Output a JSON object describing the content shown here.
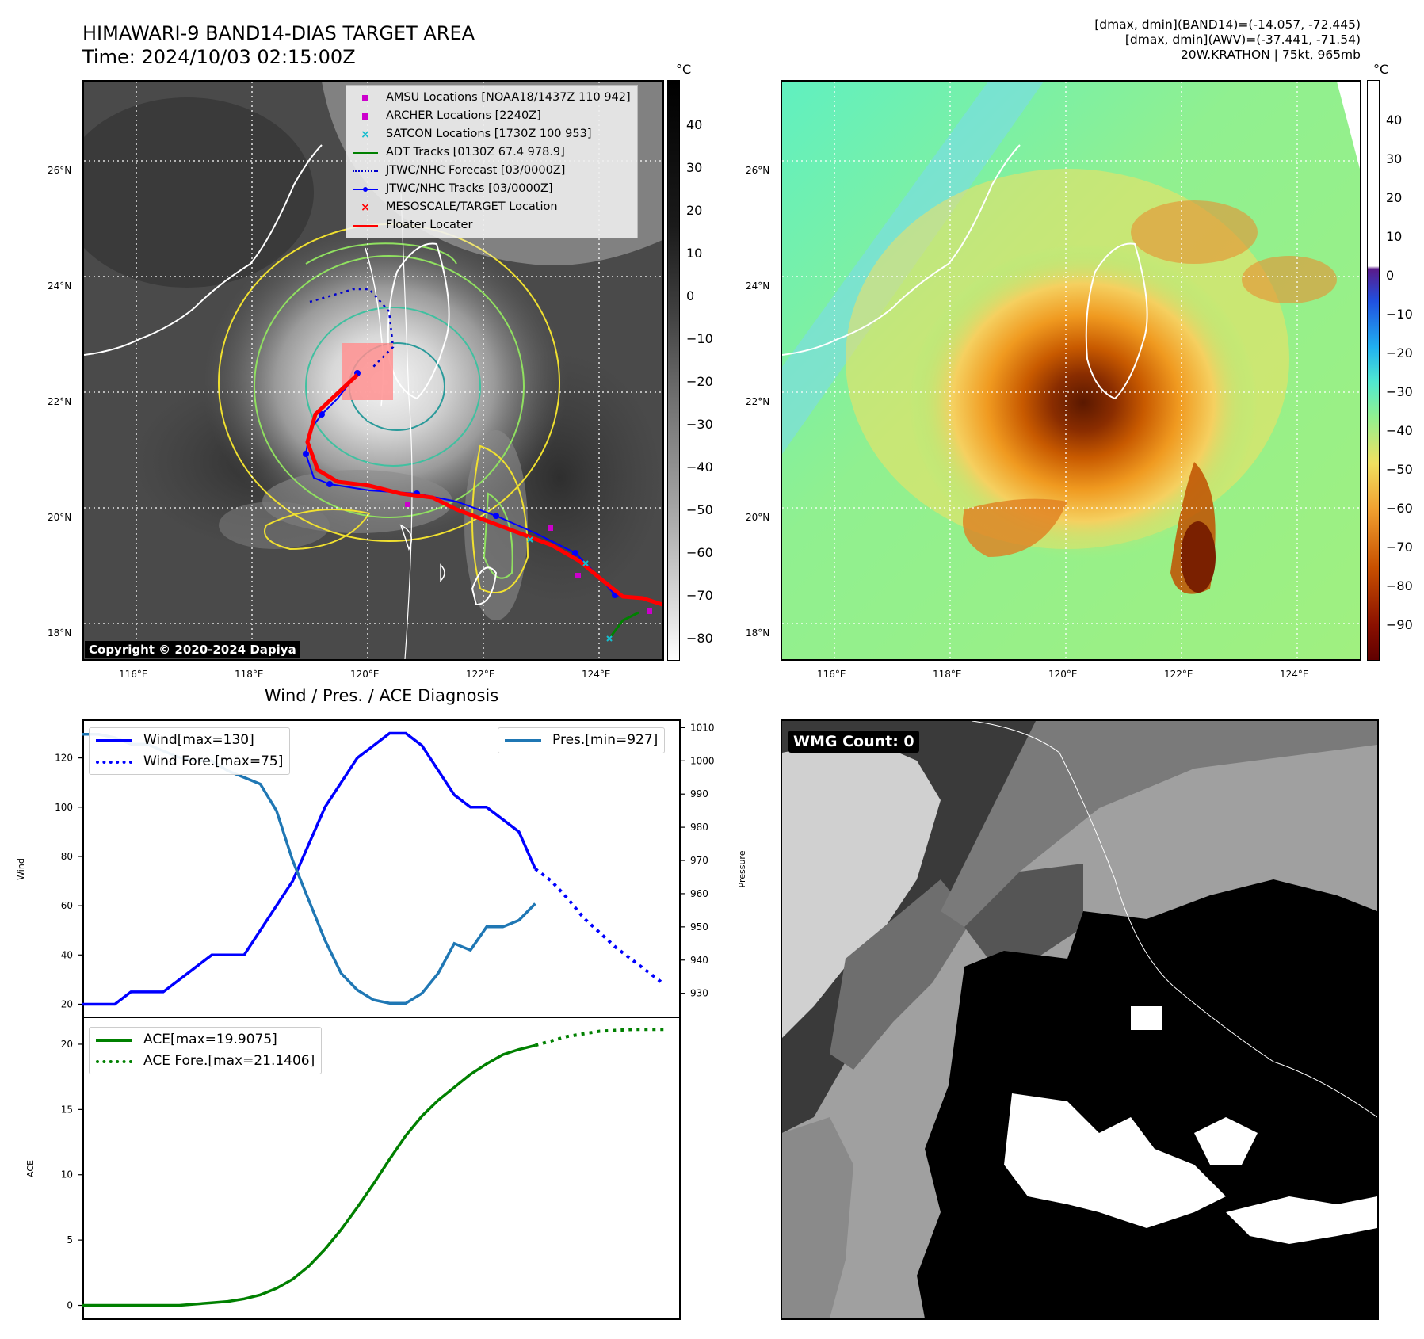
{
  "header": {
    "title_line1": "HIMAWARI-9 BAND14-DIAS TARGET AREA",
    "title_line2": "Time: 2024/10/03 02:15:00Z",
    "stats_line1": "[dmax, dmin](BAND14)=(-14.057, -72.445)",
    "stats_line2": "[dmax, dmin](AWV)=(-37.441, -71.54)",
    "stats_line3": "20W.KRATHON | 75kt, 965mb"
  },
  "map_axes": {
    "lat_ticks": [
      "26°N",
      "24°N",
      "22°N",
      "20°N",
      "18°N"
    ],
    "lon_ticks": [
      "116°E",
      "118°E",
      "120°E",
      "122°E",
      "124°E"
    ]
  },
  "band14_panel": {
    "colorbar_unit": "°C",
    "colorbar_ticks": [
      "40",
      "30",
      "20",
      "10",
      "0",
      "−10",
      "−20",
      "−30",
      "−40",
      "−50",
      "−60",
      "−70",
      "−80"
    ],
    "copyright": "Copyright © 2020-2024 Dapiya",
    "legend": [
      {
        "label": "AMSU Locations [NOAA18/1437Z 110 942]",
        "symbol": "square",
        "color": "#cc00cc"
      },
      {
        "label": "ARCHER Locations [2240Z]",
        "symbol": "square",
        "color": "#cc00cc"
      },
      {
        "label": "SATCON Locations [1730Z 100 953]",
        "symbol": "x",
        "color": "#17becf"
      },
      {
        "label": "ADT Tracks [0130Z 67.4 978.9]",
        "symbol": "line",
        "color": "#008000"
      },
      {
        "label": "JTWC/NHC Forecast [03/0000Z]",
        "symbol": "dotted",
        "color": "#0000cc"
      },
      {
        "label": "JTWC/NHC Tracks [03/0000Z]",
        "symbol": "line-dot",
        "color": "#0000ff"
      },
      {
        "label": "MESOSCALE/TARGET Location",
        "symbol": "x",
        "color": "#ff0000"
      },
      {
        "label": "Floater Locater",
        "symbol": "line",
        "color": "#ff0000"
      }
    ]
  },
  "awv_panel": {
    "colorbar_unit": "°C",
    "colorbar_ticks": [
      "40",
      "30",
      "20",
      "10",
      "0",
      "−10",
      "−20",
      "−30",
      "−40",
      "−50",
      "−60",
      "−70",
      "−80",
      "−90"
    ]
  },
  "diagnosis": {
    "title": "Wind / Pres. / ACE Diagnosis",
    "wind_ylabel": "Wind",
    "pres_ylabel": "Pressure",
    "ace_ylabel": "ACE",
    "wind_legend": "Wind[max=130]",
    "wind_fore_legend": "Wind Fore.[max=75]",
    "pres_legend": "Pres.[min=927]",
    "ace_legend": "ACE[max=19.9075]",
    "ace_fore_legend": "ACE Fore.[max=21.1406]",
    "colors": {
      "wind": "#0000ff",
      "pres": "#1f77b4",
      "ace": "#008000"
    }
  },
  "wmg_panel": {
    "label": "WMG Count: 0"
  },
  "chart_data": [
    {
      "type": "line",
      "ylabel": "Wind",
      "ylim": [
        15,
        135
      ],
      "xlim": [
        0,
        37
      ],
      "series": [
        {
          "name": "Wind[max=130]",
          "x": [
            0,
            1,
            2,
            3,
            4,
            5,
            6,
            7,
            8,
            9,
            10,
            11,
            12,
            13,
            14,
            15,
            16,
            17,
            18,
            19,
            20,
            21,
            22,
            23,
            24,
            25,
            26,
            27,
            28
          ],
          "values": [
            20,
            20,
            20,
            25,
            25,
            25,
            30,
            35,
            40,
            40,
            40,
            50,
            60,
            70,
            85,
            100,
            110,
            120,
            125,
            130,
            130,
            125,
            115,
            105,
            100,
            100,
            95,
            90,
            75
          ]
        },
        {
          "name": "Wind Fore.[max=75]",
          "x": [
            28,
            29,
            30,
            31,
            32,
            33,
            34,
            35,
            36
          ],
          "values": [
            75,
            70,
            63,
            55,
            49,
            43,
            38,
            33,
            28
          ]
        }
      ]
    },
    {
      "type": "line",
      "ylabel": "Pressure",
      "ylim": [
        923,
        1012
      ],
      "xlim": [
        0,
        37
      ],
      "series": [
        {
          "name": "Pres.[min=927]",
          "x": [
            0,
            1,
            2,
            3,
            4,
            5,
            6,
            7,
            8,
            9,
            10,
            11,
            12,
            13,
            14,
            15,
            16,
            17,
            18,
            19,
            20,
            21,
            22,
            23,
            24,
            25,
            26,
            27,
            28
          ],
          "values": [
            1008,
            1008,
            1007,
            1005,
            1005,
            1003,
            1001,
            1000,
            1000,
            997,
            995,
            993,
            985,
            970,
            958,
            946,
            936,
            931,
            928,
            927,
            927,
            930,
            936,
            945,
            943,
            950,
            950,
            952,
            957
          ]
        }
      ]
    },
    {
      "type": "line",
      "ylabel": "ACE",
      "ylim": [
        -1,
        22
      ],
      "xlim": [
        0,
        37
      ],
      "series": [
        {
          "name": "ACE[max=19.9075]",
          "x": [
            0,
            2,
            4,
            6,
            7,
            8,
            9,
            10,
            11,
            12,
            13,
            14,
            15,
            16,
            17,
            18,
            19,
            20,
            21,
            22,
            23,
            24,
            25,
            26,
            27,
            28
          ],
          "values": [
            0,
            0,
            0,
            0,
            0.1,
            0.2,
            0.3,
            0.5,
            0.8,
            1.3,
            2.0,
            3.0,
            4.3,
            5.8,
            7.5,
            9.3,
            11.2,
            13.0,
            14.5,
            15.7,
            16.7,
            17.7,
            18.5,
            19.2,
            19.6,
            19.91
          ]
        },
        {
          "name": "ACE Fore.[max=21.1406]",
          "x": [
            28,
            30,
            32,
            34,
            36
          ],
          "values": [
            19.91,
            20.6,
            21.0,
            21.13,
            21.14
          ]
        }
      ]
    }
  ]
}
